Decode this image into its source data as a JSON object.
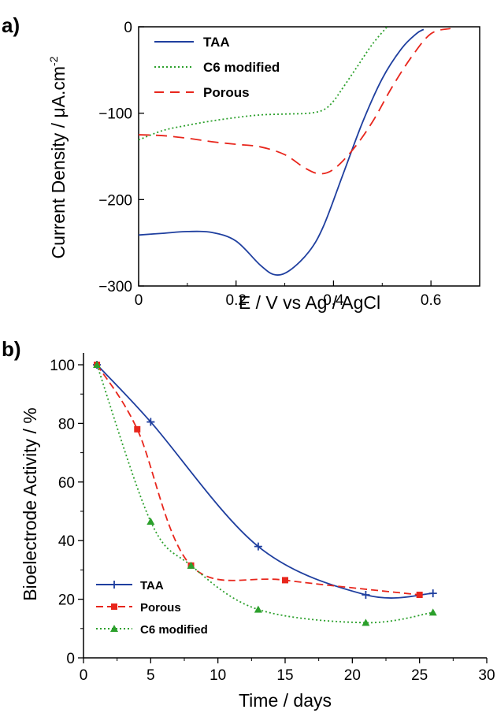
{
  "chart_data": [
    {
      "panel_label": "a)",
      "type": "line",
      "title": "",
      "xlabel": "E / V vs Ag / AgCl",
      "ylabel_main": "Current Density / μA.cm",
      "ylabel_superscript": "-2",
      "xlim": [
        0,
        0.7
      ],
      "ylim": [
        -300,
        0
      ],
      "xticks": [
        0,
        0.2,
        0.4,
        0.6
      ],
      "xtick_labels": [
        "0",
        "0.2",
        "0.4",
        "0.6"
      ],
      "yticks": [
        0,
        -100,
        -200,
        -300
      ],
      "ytick_labels": [
        "0",
        "−100",
        "−200",
        "−300"
      ],
      "grid": false,
      "legend_position": "top-left",
      "series": [
        {
          "name": "TAA",
          "color": "#1f3f9f",
          "style": "solid",
          "x": [
            0,
            0.05,
            0.1,
            0.15,
            0.2,
            0.25,
            0.28,
            0.31,
            0.35,
            0.38,
            0.42,
            0.46,
            0.5,
            0.54,
            0.57,
            0.585
          ],
          "y": [
            -241,
            -239,
            -237,
            -238,
            -248,
            -276,
            -287,
            -282,
            -260,
            -230,
            -170,
            -110,
            -60,
            -25,
            -8,
            -3
          ]
        },
        {
          "name": "C6 modified",
          "color": "#2ca02c",
          "style": "dotted",
          "x": [
            0,
            0.05,
            0.1,
            0.15,
            0.2,
            0.25,
            0.3,
            0.35,
            0.38,
            0.4,
            0.42,
            0.45,
            0.48,
            0.51
          ],
          "y": [
            -131,
            -120,
            -114,
            -109,
            -105,
            -102,
            -101,
            -100,
            -96,
            -86,
            -70,
            -45,
            -20,
            0
          ]
        },
        {
          "name": "Porous",
          "color": "#e8261c",
          "style": "dashed",
          "x": [
            0,
            0.05,
            0.1,
            0.15,
            0.2,
            0.25,
            0.3,
            0.34,
            0.37,
            0.4,
            0.44,
            0.48,
            0.52,
            0.56,
            0.6,
            0.64
          ],
          "y": [
            -125,
            -126,
            -129,
            -133,
            -136,
            -139,
            -148,
            -163,
            -170,
            -165,
            -142,
            -110,
            -70,
            -35,
            -8,
            -2
          ]
        }
      ]
    },
    {
      "panel_label": "b)",
      "type": "line",
      "title": "",
      "xlabel": "Time / days",
      "ylabel": "Bioelectrode Activity / %",
      "xlim": [
        0,
        30
      ],
      "ylim": [
        0,
        100
      ],
      "xticks": [
        0,
        5,
        10,
        15,
        20,
        25,
        30
      ],
      "xtick_labels": [
        "0",
        "5",
        "10",
        "15",
        "20",
        "25",
        "30"
      ],
      "yticks": [
        0,
        20,
        40,
        60,
        80,
        100
      ],
      "ytick_labels": [
        "0",
        "20",
        "40",
        "60",
        "80",
        "100"
      ],
      "grid": false,
      "legend_position": "bottom-left",
      "series": [
        {
          "name": "TAA",
          "color": "#1f3f9f",
          "style": "solid",
          "marker": "plus",
          "x": [
            1,
            5,
            13,
            21,
            26
          ],
          "y": [
            100,
            80.5,
            38,
            21.5,
            22
          ]
        },
        {
          "name": "Porous",
          "color": "#e8261c",
          "style": "dashed",
          "marker": "square",
          "x": [
            1,
            4,
            8,
            15,
            25
          ],
          "y": [
            100,
            78,
            31.5,
            26.5,
            21.5
          ]
        },
        {
          "name": "C6 modified",
          "color": "#2ca02c",
          "style": "dotted",
          "marker": "triangle",
          "x": [
            1,
            5,
            8,
            13,
            21,
            26
          ],
          "y": [
            100,
            46.5,
            31.5,
            16.5,
            12,
            15.5
          ]
        }
      ]
    }
  ]
}
